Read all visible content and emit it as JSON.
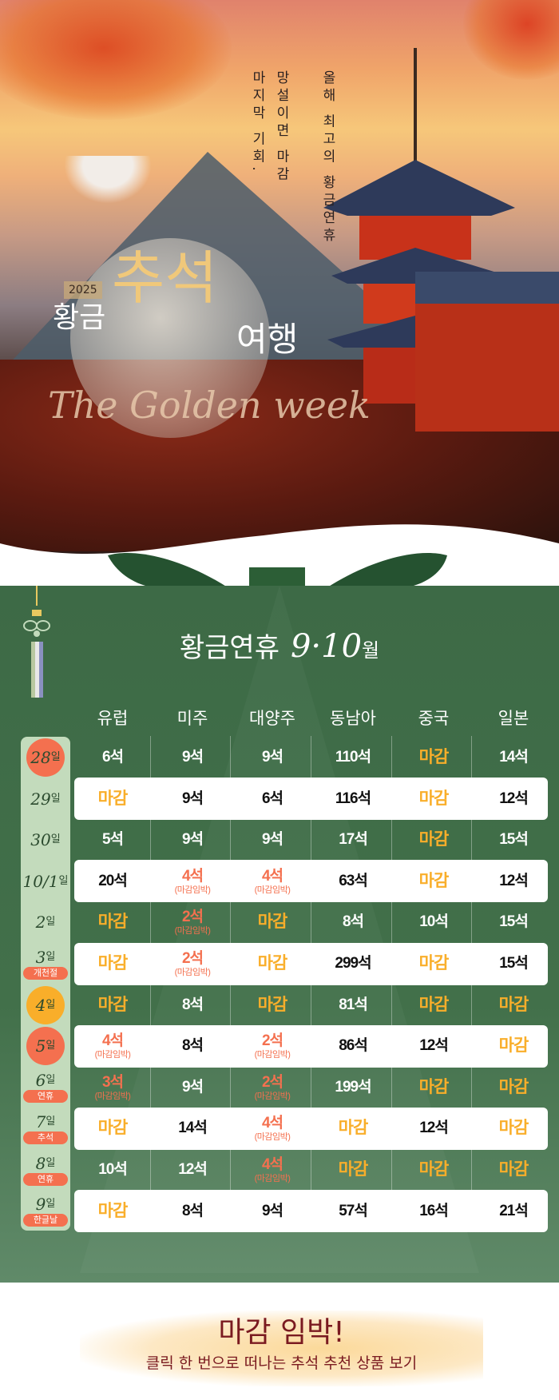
{
  "hero": {
    "tagline_lines": [
      "올해 최고의 황금연휴",
      "망설이면 마감",
      "마지막 기회."
    ],
    "year": "2025",
    "title_part1": "황금",
    "title_part2": "추석",
    "title_part3": "여행",
    "script_text": "The Golden week"
  },
  "section": {
    "title": "황금연휴",
    "months": "9·10",
    "month_suffix": "월"
  },
  "colors": {
    "green": "#3e6b47",
    "closed": "#f9ae2a",
    "urgent": "#f4704f",
    "date_bar": "#c3dbbc"
  },
  "table": {
    "columns": [
      "유럽",
      "미주",
      "대양주",
      "동남아",
      "중국",
      "일본"
    ],
    "rows": [
      {
        "date": "28",
        "suffix": "일",
        "badge": "#f4704f",
        "tag": "",
        "cells": [
          {
            "v": "6석"
          },
          {
            "v": "9석"
          },
          {
            "v": "9석"
          },
          {
            "v": "110석"
          },
          {
            "v": "마감",
            "t": "closed"
          },
          {
            "v": "14석"
          }
        ]
      },
      {
        "date": "29",
        "suffix": "일",
        "tag": "",
        "cells": [
          {
            "v": "마감",
            "t": "closed"
          },
          {
            "v": "9석"
          },
          {
            "v": "6석"
          },
          {
            "v": "116석"
          },
          {
            "v": "마감",
            "t": "closed"
          },
          {
            "v": "12석"
          }
        ]
      },
      {
        "date": "30",
        "suffix": "일",
        "tag": "",
        "cells": [
          {
            "v": "5석"
          },
          {
            "v": "9석"
          },
          {
            "v": "9석"
          },
          {
            "v": "17석"
          },
          {
            "v": "마감",
            "t": "closed"
          },
          {
            "v": "15석"
          }
        ]
      },
      {
        "date": "10/1",
        "suffix": "일",
        "tag": "",
        "cells": [
          {
            "v": "20석"
          },
          {
            "v": "4석",
            "t": "urgent",
            "s": "(마감임박)"
          },
          {
            "v": "4석",
            "t": "urgent",
            "s": "(마감임박)"
          },
          {
            "v": "63석"
          },
          {
            "v": "마감",
            "t": "closed"
          },
          {
            "v": "12석"
          }
        ]
      },
      {
        "date": "2",
        "suffix": "일",
        "tag": "",
        "cells": [
          {
            "v": "마감",
            "t": "closed"
          },
          {
            "v": "2석",
            "t": "urgent",
            "s": "(마감임박)"
          },
          {
            "v": "마감",
            "t": "closed"
          },
          {
            "v": "8석"
          },
          {
            "v": "10석"
          },
          {
            "v": "15석"
          }
        ]
      },
      {
        "date": "3",
        "suffix": "일",
        "tag": "개천절",
        "cells": [
          {
            "v": "마감",
            "t": "closed"
          },
          {
            "v": "2석",
            "t": "urgent",
            "s": "(마감임박)"
          },
          {
            "v": "마감",
            "t": "closed"
          },
          {
            "v": "299석"
          },
          {
            "v": "마감",
            "t": "closed"
          },
          {
            "v": "15석"
          }
        ]
      },
      {
        "date": "4",
        "suffix": "일",
        "badge": "#f9ae2a",
        "tag": "",
        "cells": [
          {
            "v": "마감",
            "t": "closed"
          },
          {
            "v": "8석"
          },
          {
            "v": "마감",
            "t": "closed"
          },
          {
            "v": "81석"
          },
          {
            "v": "마감",
            "t": "closed"
          },
          {
            "v": "마감",
            "t": "closed"
          }
        ]
      },
      {
        "date": "5",
        "suffix": "일",
        "badge": "#f4704f",
        "tag": "",
        "cells": [
          {
            "v": "4석",
            "t": "urgent",
            "s": "(마감임박)"
          },
          {
            "v": "8석"
          },
          {
            "v": "2석",
            "t": "urgent",
            "s": "(마감임박)"
          },
          {
            "v": "86석"
          },
          {
            "v": "12석"
          },
          {
            "v": "마감",
            "t": "closed"
          }
        ]
      },
      {
        "date": "6",
        "suffix": "일",
        "tag": "연휴",
        "cells": [
          {
            "v": "3석",
            "t": "urgent",
            "s": "(마감임박)"
          },
          {
            "v": "9석"
          },
          {
            "v": "2석",
            "t": "urgent",
            "s": "(마감임박)"
          },
          {
            "v": "199석"
          },
          {
            "v": "마감",
            "t": "closed"
          },
          {
            "v": "마감",
            "t": "closed"
          }
        ]
      },
      {
        "date": "7",
        "suffix": "일",
        "tag": "추석",
        "cells": [
          {
            "v": "마감",
            "t": "closed"
          },
          {
            "v": "14석"
          },
          {
            "v": "4석",
            "t": "urgent",
            "s": "(마감임박)"
          },
          {
            "v": "마감",
            "t": "closed"
          },
          {
            "v": "12석"
          },
          {
            "v": "마감",
            "t": "closed"
          }
        ]
      },
      {
        "date": "8",
        "suffix": "일",
        "tag": "연휴",
        "cells": [
          {
            "v": "10석"
          },
          {
            "v": "12석"
          },
          {
            "v": "4석",
            "t": "urgent",
            "s": "(마감임박)"
          },
          {
            "v": "마감",
            "t": "closed"
          },
          {
            "v": "마감",
            "t": "closed"
          },
          {
            "v": "마감",
            "t": "closed"
          }
        ]
      },
      {
        "date": "9",
        "suffix": "일",
        "tag": "한글날",
        "cells": [
          {
            "v": "마감",
            "t": "closed"
          },
          {
            "v": "8석"
          },
          {
            "v": "9석"
          },
          {
            "v": "57석"
          },
          {
            "v": "16석"
          },
          {
            "v": "21석"
          }
        ]
      }
    ]
  },
  "footer": {
    "title": "마감 임박!",
    "subtitle": "클릭 한 번으로 떠나는 추석 추천 상품 보기"
  }
}
